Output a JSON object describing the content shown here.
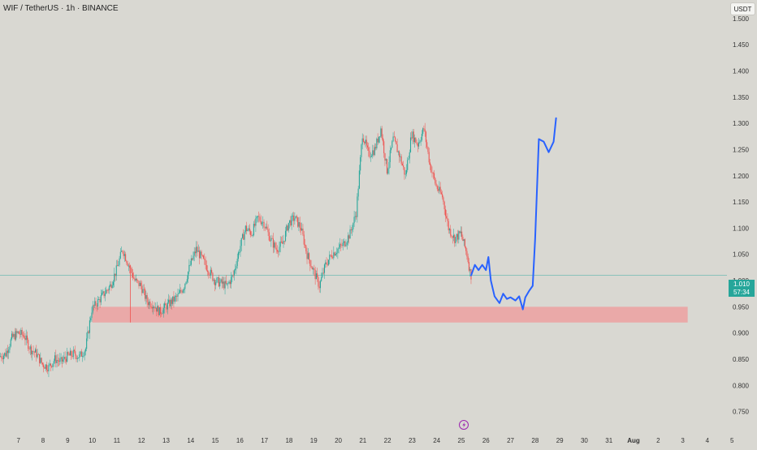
{
  "header": {
    "title": "WIF / TetherUS · 1h · BINANCE",
    "currency_label": "USDT"
  },
  "price_badge": {
    "price": "1.010",
    "countdown": "57:34"
  },
  "colors": {
    "background": "#d9d8d2",
    "up_candle": "#26a69a",
    "down_candle": "#ef5350",
    "projection": "#2962ff",
    "support_zone": "#ef9a9a",
    "price_line": "#26a69a"
  },
  "event_icon": "lightning-icon",
  "chart_data": {
    "type": "candlestick",
    "y_axis": {
      "ticks": [
        "0.750",
        "0.800",
        "0.850",
        "0.900",
        "0.950",
        "1.000",
        "1.050",
        "1.100",
        "1.150",
        "1.200",
        "1.250",
        "1.300",
        "1.350",
        "1.400",
        "1.450",
        "1.500"
      ],
      "range": [
        0.72,
        1.52
      ]
    },
    "x_axis": {
      "ticks": [
        "7",
        "8",
        "9",
        "10",
        "11",
        "12",
        "13",
        "14",
        "15",
        "16",
        "17",
        "18",
        "19",
        "20",
        "21",
        "22",
        "23",
        "24",
        "25",
        "26",
        "27",
        "28",
        "29",
        "30",
        "31",
        "Aug",
        "2",
        "3",
        "4",
        "5"
      ],
      "bold_ticks": [
        "Aug"
      ],
      "range_days": [
        6.25,
        35.3
      ]
    },
    "price_path": [
      [
        6.25,
        0.855
      ],
      [
        6.5,
        0.86
      ],
      [
        6.75,
        0.89
      ],
      [
        7.0,
        0.9
      ],
      [
        7.25,
        0.895
      ],
      [
        7.5,
        0.87
      ],
      [
        7.75,
        0.86
      ],
      [
        8.0,
        0.84
      ],
      [
        8.25,
        0.835
      ],
      [
        8.5,
        0.85
      ],
      [
        8.75,
        0.845
      ],
      [
        9.0,
        0.855
      ],
      [
        9.25,
        0.86
      ],
      [
        9.5,
        0.855
      ],
      [
        9.75,
        0.87
      ],
      [
        10.0,
        0.945
      ],
      [
        10.25,
        0.96
      ],
      [
        10.5,
        0.975
      ],
      [
        10.75,
        0.99
      ],
      [
        11.0,
        1.02
      ],
      [
        11.25,
        1.06
      ],
      [
        11.5,
        1.03
      ],
      [
        11.75,
        1.0
      ],
      [
        12.0,
        0.99
      ],
      [
        12.25,
        0.96
      ],
      [
        12.5,
        0.955
      ],
      [
        12.75,
        0.94
      ],
      [
        13.0,
        0.95
      ],
      [
        13.25,
        0.96
      ],
      [
        13.5,
        0.97
      ],
      [
        13.75,
        0.99
      ],
      [
        14.0,
        1.03
      ],
      [
        14.25,
        1.06
      ],
      [
        14.5,
        1.04
      ],
      [
        14.75,
        1.02
      ],
      [
        15.0,
        1.0
      ],
      [
        15.25,
        0.995
      ],
      [
        15.5,
        0.99
      ],
      [
        15.75,
        1.01
      ],
      [
        16.0,
        1.06
      ],
      [
        16.25,
        1.1
      ],
      [
        16.5,
        1.09
      ],
      [
        16.75,
        1.12
      ],
      [
        17.0,
        1.11
      ],
      [
        17.25,
        1.08
      ],
      [
        17.5,
        1.06
      ],
      [
        17.75,
        1.07
      ],
      [
        18.0,
        1.11
      ],
      [
        18.25,
        1.12
      ],
      [
        18.5,
        1.1
      ],
      [
        18.75,
        1.05
      ],
      [
        19.0,
        1.02
      ],
      [
        19.25,
        0.99
      ],
      [
        19.5,
        1.03
      ],
      [
        19.75,
        1.05
      ],
      [
        20.0,
        1.06
      ],
      [
        20.25,
        1.07
      ],
      [
        20.5,
        1.09
      ],
      [
        20.75,
        1.13
      ],
      [
        21.0,
        1.28
      ],
      [
        21.25,
        1.24
      ],
      [
        21.5,
        1.25
      ],
      [
        21.75,
        1.29
      ],
      [
        22.0,
        1.21
      ],
      [
        22.25,
        1.27
      ],
      [
        22.5,
        1.24
      ],
      [
        22.75,
        1.2
      ],
      [
        23.0,
        1.28
      ],
      [
        23.25,
        1.26
      ],
      [
        23.5,
        1.29
      ],
      [
        23.75,
        1.22
      ],
      [
        24.0,
        1.18
      ],
      [
        24.25,
        1.16
      ],
      [
        24.5,
        1.1
      ],
      [
        24.75,
        1.08
      ],
      [
        25.0,
        1.09
      ],
      [
        25.25,
        1.05
      ],
      [
        25.4,
        1.01
      ]
    ],
    "projection": [
      [
        25.4,
        1.01
      ],
      [
        25.55,
        1.03
      ],
      [
        25.7,
        1.02
      ],
      [
        25.85,
        1.03
      ],
      [
        26.0,
        1.02
      ],
      [
        26.1,
        1.045
      ],
      [
        26.2,
        1.0
      ],
      [
        26.35,
        0.97
      ],
      [
        26.55,
        0.957
      ],
      [
        26.7,
        0.975
      ],
      [
        26.85,
        0.965
      ],
      [
        27.0,
        0.968
      ],
      [
        27.2,
        0.962
      ],
      [
        27.35,
        0.97
      ],
      [
        27.5,
        0.945
      ],
      [
        27.6,
        0.968
      ],
      [
        27.75,
        0.98
      ],
      [
        27.9,
        0.99
      ],
      [
        28.0,
        1.08
      ],
      [
        28.15,
        1.27
      ],
      [
        28.35,
        1.265
      ],
      [
        28.55,
        1.245
      ],
      [
        28.75,
        1.265
      ],
      [
        28.85,
        1.31
      ]
    ],
    "support_zone": {
      "from_day": 10.0,
      "to_day": 34.2,
      "low": 0.92,
      "high": 0.95
    },
    "current_price": 1.01
  }
}
